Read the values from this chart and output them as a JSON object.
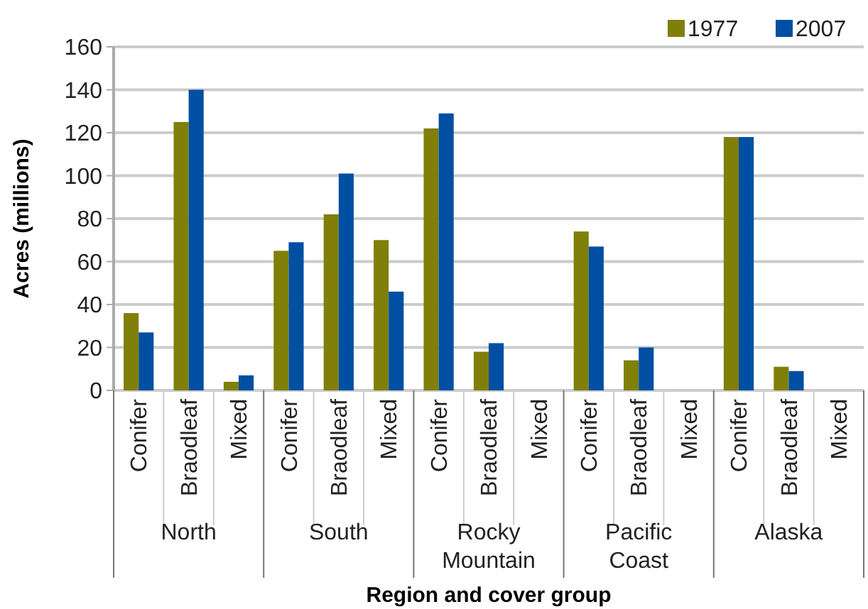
{
  "chart_data": {
    "type": "bar",
    "xlabel": "Region and cover group",
    "ylabel": "Acres (millions)",
    "categories": [
      "Conifer",
      "Braodleaf",
      "Mixed",
      "Conifer",
      "Braodleaf",
      "Mixed",
      "Conifer",
      "Braodleaf",
      "Mixed",
      "Conifer",
      "Braodleaf",
      "Mixed",
      "Conifer",
      "Braodleaf",
      "Mixed"
    ],
    "annotations": [
      "North",
      "South",
      "Rocky Mountain",
      "Pacific Coast",
      "Alaska"
    ],
    "series": [
      {
        "name": "1977",
        "color": "#7f7f0a",
        "values": [
          36,
          125,
          4,
          65,
          82,
          70,
          122,
          18,
          null,
          74,
          14,
          null,
          118,
          11,
          null
        ]
      },
      {
        "name": "2007",
        "color": "#004fa3",
        "values": [
          27,
          140,
          7,
          69,
          101,
          46,
          129,
          22,
          null,
          67,
          20,
          null,
          118,
          9,
          null
        ]
      }
    ],
    "ylim": [
      0,
      160
    ],
    "yticks": [
      0,
      20,
      40,
      60,
      80,
      100,
      120,
      140,
      160
    ],
    "grid": "y",
    "legend": "top right"
  }
}
